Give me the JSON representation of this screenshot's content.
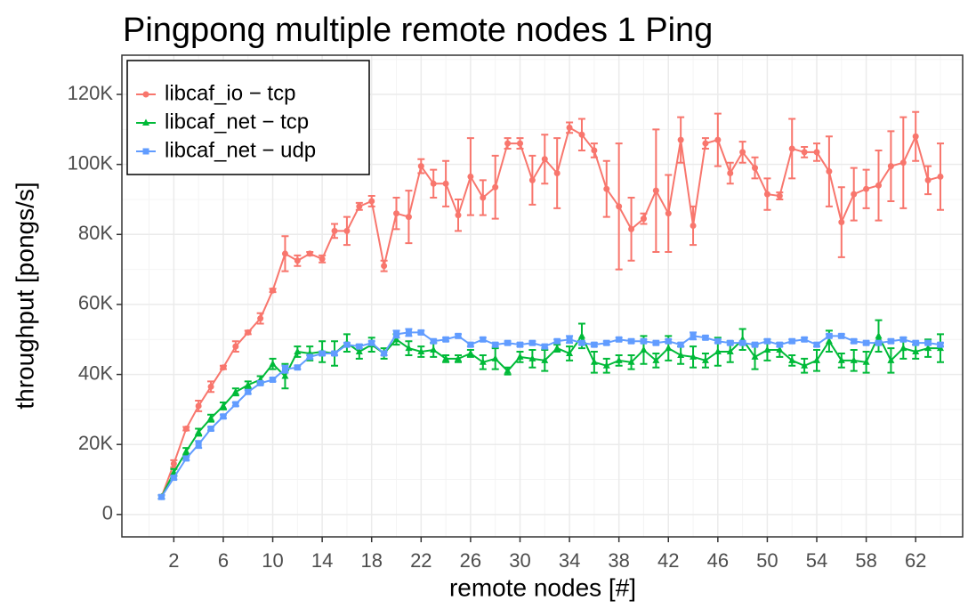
{
  "chart_data": {
    "type": "line",
    "title": "Pingpong multiple remote nodes 1 Ping",
    "x_label": "remote nodes [#]",
    "y_label": "throughput [pongs/s]",
    "x": [
      1,
      2,
      3,
      4,
      5,
      6,
      7,
      8,
      9,
      10,
      11,
      12,
      13,
      14,
      15,
      16,
      17,
      18,
      19,
      20,
      21,
      22,
      23,
      24,
      25,
      26,
      27,
      28,
      29,
      30,
      31,
      32,
      33,
      34,
      35,
      36,
      37,
      38,
      39,
      40,
      41,
      42,
      43,
      44,
      45,
      46,
      47,
      48,
      49,
      50,
      51,
      52,
      53,
      54,
      55,
      56,
      57,
      58,
      59,
      60,
      61,
      62,
      63,
      64
    ],
    "series": [
      {
        "name": "libcaf_io − tcp",
        "color": "#F8766D",
        "marker": "circle",
        "values": [
          5000,
          14500,
          24500,
          31000,
          36500,
          42000,
          48000,
          52000,
          56000,
          64000,
          74500,
          72500,
          74500,
          73000,
          81000,
          81000,
          88000,
          89500,
          71000,
          86000,
          85000,
          99500,
          94500,
          94500,
          85500,
          96500,
          90500,
          93500,
          106000,
          106000,
          95500,
          101500,
          97500,
          110500,
          108500,
          104000,
          93000,
          88000,
          81500,
          84500,
          92500,
          86000,
          107000,
          82500,
          106000,
          107000,
          97500,
          103500,
          99000,
          91500,
          91000,
          104500,
          103500,
          103500,
          98000,
          83500,
          91500,
          93000,
          94000,
          99500,
          100500,
          108000,
          95500,
          96500
        ],
        "errors": [
          500,
          1000,
          500,
          1500,
          1500,
          500,
          1500,
          500,
          1500,
          500,
          5000,
          1500,
          500,
          1000,
          2000,
          4000,
          1000,
          1500,
          1500,
          4500,
          7500,
          2000,
          4000,
          6500,
          4500,
          11000,
          5000,
          9000,
          1500,
          1500,
          7000,
          7000,
          10000,
          1500,
          4500,
          2000,
          8000,
          18000,
          9000,
          1500,
          17500,
          11000,
          6500,
          5500,
          1500,
          7500,
          3000,
          3000,
          3000,
          4500,
          1000,
          8500,
          1500,
          2500,
          10000,
          10000,
          7500,
          5500,
          10000,
          10000,
          13000,
          7000,
          4000,
          9500
        ]
      },
      {
        "name": "libcaf_net − tcp",
        "color": "#00BA38",
        "marker": "triangle",
        "values": [
          5000,
          12000,
          18000,
          23500,
          27500,
          31000,
          35000,
          37000,
          38500,
          43000,
          39500,
          46500,
          46000,
          46500,
          46000,
          49000,
          46500,
          48500,
          46000,
          50000,
          47500,
          46500,
          47000,
          44500,
          44500,
          46000,
          43500,
          44500,
          41000,
          45000,
          44500,
          44000,
          47500,
          46000,
          51000,
          43500,
          42500,
          44000,
          43500,
          47000,
          44000,
          47500,
          45500,
          45000,
          44000,
          46500,
          46500,
          50000,
          45000,
          47000,
          47000,
          44000,
          42500,
          44000,
          49500,
          44000,
          44000,
          43500,
          51000,
          44000,
          47500,
          46500,
          47500,
          47500
        ],
        "errors": [
          500,
          1000,
          1000,
          1000,
          1000,
          1000,
          1000,
          1000,
          1000,
          1500,
          3500,
          1500,
          2000,
          3000,
          3500,
          2500,
          2000,
          2000,
          1500,
          1500,
          2000,
          1500,
          2000,
          1000,
          1000,
          1000,
          2000,
          3000,
          1000,
          1500,
          2500,
          3000,
          1000,
          2000,
          3500,
          3000,
          2000,
          1500,
          2000,
          4000,
          2000,
          3500,
          2500,
          3000,
          2000,
          4000,
          3000,
          3000,
          3500,
          3000,
          2000,
          1500,
          2000,
          3000,
          3000,
          2000,
          3000,
          3000,
          4500,
          3500,
          3000,
          2000,
          2500,
          4000
        ]
      },
      {
        "name": "libcaf_net − udp",
        "color": "#619CFF",
        "marker": "square",
        "values": [
          5000,
          10500,
          16000,
          20000,
          24500,
          28000,
          31500,
          35000,
          37500,
          38500,
          41500,
          42000,
          45000,
          46000,
          46000,
          48500,
          48000,
          49000,
          46000,
          51500,
          52000,
          52000,
          49500,
          50000,
          51000,
          48500,
          50000,
          48500,
          49000,
          48500,
          49000,
          48000,
          49500,
          50000,
          49000,
          48500,
          49000,
          50000,
          49500,
          49500,
          49000,
          49500,
          48500,
          51000,
          50500,
          49500,
          49000,
          49000,
          48500,
          49500,
          48500,
          49500,
          50000,
          48500,
          51000,
          51000,
          49500,
          49000,
          49000,
          49500,
          50000,
          49000,
          49000,
          48500
        ],
        "errors": [
          500,
          500,
          500,
          1000,
          500,
          500,
          500,
          500,
          500,
          500,
          1000,
          500,
          500,
          500,
          500,
          500,
          500,
          500,
          500,
          1000,
          1000,
          500,
          500,
          500,
          500,
          500,
          500,
          500,
          500,
          500,
          500,
          500,
          500,
          1000,
          500,
          500,
          500,
          500,
          500,
          500,
          500,
          500,
          500,
          1000,
          500,
          500,
          500,
          500,
          500,
          500,
          500,
          500,
          500,
          500,
          500,
          500,
          500,
          500,
          500,
          500,
          500,
          500,
          500,
          500
        ]
      }
    ],
    "xlim": [
      -2.2,
      65.8
    ],
    "xticks": [
      2,
      6,
      10,
      14,
      18,
      22,
      26,
      30,
      34,
      38,
      42,
      46,
      50,
      54,
      58,
      62
    ],
    "ylim": [
      -6400,
      131200
    ],
    "yticks": [
      0,
      {
        "value": 20000,
        "label": "20K"
      },
      {
        "value": 40000,
        "label": "40K"
      },
      {
        "value": 60000,
        "label": "60K"
      },
      {
        "value": 80000,
        "label": "80K"
      },
      {
        "value": 100000,
        "label": "100K"
      },
      {
        "value": 120000,
        "label": "120K"
      }
    ],
    "grid": true,
    "minor_grid": true,
    "legend": "top-left"
  }
}
